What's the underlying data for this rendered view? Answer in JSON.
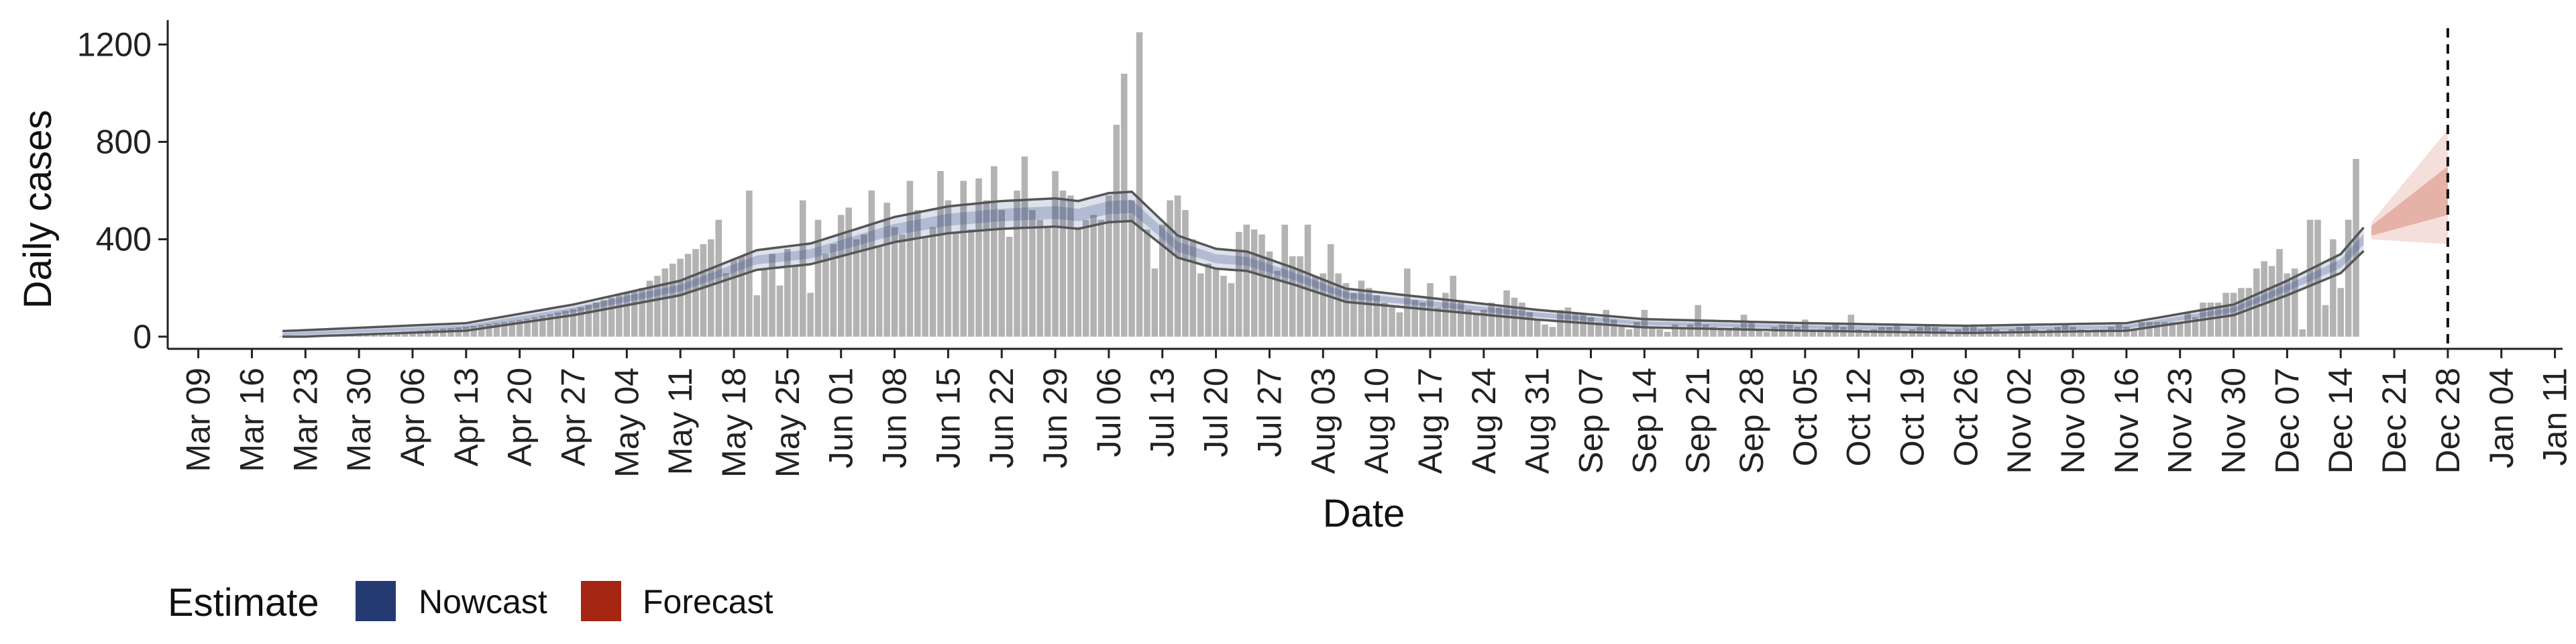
{
  "chart_data": {
    "type": "bar",
    "xlabel": "Date",
    "ylabel": "Daily cases",
    "x_range": [
      "2020-03-05",
      "2021-01-12"
    ],
    "ylim": [
      -50,
      1300
    ],
    "y_ticks": [
      0,
      400,
      800,
      1200
    ],
    "y_tick_labels": [
      "0",
      "400",
      "800",
      "1200"
    ],
    "x_ticks": [
      "2020-03-09",
      "2020-03-16",
      "2020-03-23",
      "2020-03-30",
      "2020-04-06",
      "2020-04-13",
      "2020-04-20",
      "2020-04-27",
      "2020-05-04",
      "2020-05-11",
      "2020-05-18",
      "2020-05-25",
      "2020-06-01",
      "2020-06-08",
      "2020-06-15",
      "2020-06-22",
      "2020-06-29",
      "2020-07-06",
      "2020-07-13",
      "2020-07-20",
      "2020-07-27",
      "2020-08-03",
      "2020-08-10",
      "2020-08-17",
      "2020-08-24",
      "2020-08-31",
      "2020-09-07",
      "2020-09-14",
      "2020-09-21",
      "2020-09-28",
      "2020-10-05",
      "2020-10-12",
      "2020-10-19",
      "2020-10-26",
      "2020-11-02",
      "2020-11-09",
      "2020-11-16",
      "2020-11-23",
      "2020-11-30",
      "2020-12-07",
      "2020-12-14",
      "2020-12-21",
      "2020-12-28",
      "2021-01-04",
      "2021-01-11"
    ],
    "x_tick_labels": [
      "Mar 09",
      "Mar 16",
      "Mar 23",
      "Mar 30",
      "Apr 06",
      "Apr 13",
      "Apr 20",
      "Apr 27",
      "May 04",
      "May 11",
      "May 18",
      "May 25",
      "Jun 01",
      "Jun 08",
      "Jun 15",
      "Jun 22",
      "Jun 29",
      "Jul 06",
      "Jul 13",
      "Jul 20",
      "Jul 27",
      "Aug 03",
      "Aug 10",
      "Aug 17",
      "Aug 24",
      "Aug 31",
      "Sep 07",
      "Sep 14",
      "Sep 21",
      "Sep 28",
      "Oct 05",
      "Oct 12",
      "Oct 19",
      "Oct 26",
      "Nov 02",
      "Nov 09",
      "Nov 16",
      "Nov 23",
      "Nov 30",
      "Dec 07",
      "Dec 14",
      "Dec 21",
      "Dec 28",
      "Jan 04",
      "Jan 11"
    ],
    "cases_start_date": "2020-03-20",
    "daily_cases": [
      2,
      3,
      4,
      5,
      5,
      6,
      7,
      8,
      9,
      10,
      11,
      12,
      14,
      15,
      17,
      19,
      21,
      23,
      25,
      28,
      30,
      33,
      35,
      38,
      41,
      44,
      48,
      52,
      56,
      60,
      64,
      69,
      74,
      80,
      86,
      92,
      99,
      106,
      113,
      121,
      130,
      140,
      150,
      160,
      170,
      180,
      190,
      200,
      230,
      250,
      280,
      300,
      320,
      340,
      360,
      380,
      400,
      480,
      260,
      320,
      330,
      600,
      170,
      280,
      340,
      210,
      360,
      290,
      560,
      180,
      480,
      340,
      380,
      500,
      530,
      400,
      420,
      600,
      370,
      550,
      450,
      420,
      640,
      520,
      410,
      450,
      680,
      560,
      430,
      640,
      440,
      650,
      560,
      700,
      520,
      410,
      600,
      740,
      520,
      480,
      450,
      680,
      600,
      580,
      450,
      480,
      500,
      480,
      580,
      870,
      1080,
      560,
      1250,
      440,
      280,
      460,
      560,
      580,
      520,
      400,
      260,
      300,
      280,
      250,
      220,
      430,
      460,
      440,
      420,
      350,
      270,
      460,
      330,
      330,
      460,
      250,
      260,
      380,
      260,
      220,
      180,
      230,
      200,
      170,
      140,
      120,
      100,
      280,
      150,
      140,
      220,
      120,
      180,
      250,
      140,
      110,
      90,
      110,
      140,
      120,
      190,
      160,
      140,
      100,
      70,
      50,
      40,
      110,
      120,
      100,
      90,
      80,
      60,
      110,
      70,
      50,
      30,
      60,
      110,
      40,
      30,
      20,
      50,
      40,
      50,
      130,
      50,
      40,
      30,
      30,
      40,
      90,
      60,
      30,
      20,
      40,
      50,
      50,
      40,
      70,
      30,
      30,
      40,
      50,
      40,
      90,
      30,
      20,
      30,
      40,
      40,
      50,
      20,
      30,
      40,
      50,
      40,
      30,
      20,
      30,
      40,
      50,
      30,
      40,
      30,
      20,
      30,
      40,
      50,
      30,
      20,
      30,
      40,
      50,
      40,
      30,
      20,
      30,
      30,
      40,
      50,
      40,
      30,
      60,
      60,
      60,
      60,
      60,
      60,
      100,
      80,
      140,
      140,
      140,
      180,
      180,
      200,
      200,
      280,
      310,
      290,
      360,
      260,
      280,
      30,
      480,
      480,
      130,
      400,
      200,
      480,
      730
    ],
    "nowcast_start_date": "2020-03-20",
    "nowcast_end_date": "2020-12-17",
    "nowcast_knots": [
      [
        "2020-03-20",
        10
      ],
      [
        "2020-04-13",
        40
      ],
      [
        "2020-04-27",
        110
      ],
      [
        "2020-05-11",
        200
      ],
      [
        "2020-05-21",
        315
      ],
      [
        "2020-05-28",
        340
      ],
      [
        "2020-06-08",
        440
      ],
      [
        "2020-06-15",
        480
      ],
      [
        "2020-06-22",
        500
      ],
      [
        "2020-06-29",
        510
      ],
      [
        "2020-07-02",
        500
      ],
      [
        "2020-07-06",
        530
      ],
      [
        "2020-07-09",
        535
      ],
      [
        "2020-07-15",
        370
      ],
      [
        "2020-07-20",
        320
      ],
      [
        "2020-07-24",
        310
      ],
      [
        "2020-07-30",
        250
      ],
      [
        "2020-08-06",
        170
      ],
      [
        "2020-08-17",
        135
      ],
      [
        "2020-08-31",
        90
      ],
      [
        "2020-09-14",
        55
      ],
      [
        "2020-10-05",
        40
      ],
      [
        "2020-10-26",
        30
      ],
      [
        "2020-11-16",
        40
      ],
      [
        "2020-11-30",
        110
      ],
      [
        "2020-12-07",
        200
      ],
      [
        "2020-12-14",
        300
      ],
      [
        "2020-12-17",
        400
      ]
    ],
    "forecast_start_date": "2020-12-18",
    "forecast_end_date": "2020-12-28",
    "forecast_bands": [
      {
        "date": "2020-12-18",
        "lower_90": 400,
        "upper_90": 470,
        "lower_50": 415,
        "upper_50": 455
      },
      {
        "date": "2020-12-28",
        "lower_90": 380,
        "upper_90": 850,
        "lower_50": 500,
        "upper_50": 700
      }
    ],
    "reference_line_date": "2020-12-28",
    "legend": {
      "title": "Estimate",
      "position": "bottom-left",
      "items": [
        {
          "label": "Nowcast",
          "color": "#253A71"
        },
        {
          "label": "Forecast",
          "color": "#A42613"
        }
      ]
    },
    "colors": {
      "bars": "#B3B3B3",
      "nowcast_band": "#2E4482",
      "nowcast_outline": "#555555",
      "forecast_band": "#C0391C",
      "reference_line": "#111111",
      "axis": "#222222"
    },
    "grid": false
  }
}
